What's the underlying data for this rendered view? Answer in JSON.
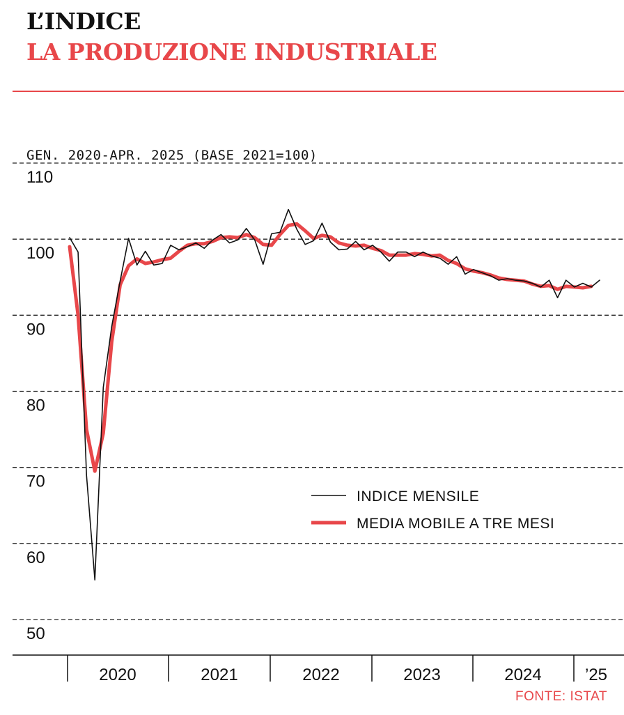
{
  "header": {
    "title": "L’INDICE",
    "subtitle": "LA PRODUZIONE INDUSTRIALE"
  },
  "colors": {
    "accent": "#e8474a",
    "series_monthly": "#111111",
    "series_ma": "#e8474a"
  },
  "chart_data": {
    "type": "line",
    "y_axis_caption": "GEN. 2020-APR. 2025 (BASE 2021=100)",
    "ylim": [
      50,
      110
    ],
    "yticks": [
      110,
      100,
      90,
      80,
      70,
      60,
      50
    ],
    "x_period_labels": [
      "2020",
      "2021",
      "2022",
      "2023",
      "2024",
      "’25"
    ],
    "grid": "horizontal dashed",
    "legend_position": "center-right",
    "series": [
      {
        "name": "INDICE MENSILE",
        "start": "2020-01",
        "values": [
          100.2,
          98.3,
          69,
          55.2,
          80.5,
          88.5,
          94.5,
          100.1,
          96.6,
          98.4,
          96.6,
          96.8,
          99.2,
          98.6,
          99.0,
          99.5,
          98.8,
          99.9,
          100.6,
          99.5,
          99.9,
          101.4,
          99.9,
          96.7,
          100.7,
          100.9,
          103.9,
          101.3,
          99.3,
          99.8,
          102.1,
          99.6,
          98.6,
          98.7,
          99.7,
          98.6,
          99.2,
          98.3,
          97.1,
          98.3,
          98.3,
          97.7,
          98.3,
          97.8,
          97.5,
          96.7,
          97.7,
          95.4,
          96.0,
          95.6,
          95.2,
          94.6,
          94.8,
          94.6,
          94.5,
          94.2,
          93.7,
          94.6,
          92.3,
          94.6,
          93.7,
          94.2,
          93.7,
          94.6
        ]
      },
      {
        "name": "MEDIA MOBILE A TRE MESI",
        "start": "2020-01",
        "values": [
          99.0,
          90.0,
          75.0,
          69.5,
          74.5,
          86.5,
          94.0,
          96.5,
          97.4,
          96.8,
          97.0,
          97.3,
          97.5,
          98.4,
          99.2,
          99.4,
          99.4,
          99.7,
          100.2,
          100.3,
          100.2,
          100.6,
          100.2,
          99.3,
          99.2,
          100.6,
          101.8,
          102.0,
          101.1,
          100.1,
          100.5,
          100.3,
          99.5,
          99.2,
          99.1,
          99.2,
          98.8,
          98.5,
          97.9,
          97.9,
          97.9,
          98.1,
          98.0,
          97.8,
          97.9,
          97.2,
          96.8,
          96.1,
          95.8,
          95.6,
          95.3,
          94.9,
          94.7,
          94.6,
          94.5,
          94.1,
          93.8,
          93.9,
          93.4,
          93.8,
          93.7,
          93.6,
          93.8
        ]
      }
    ]
  },
  "source": "FONTE: ISTAT"
}
